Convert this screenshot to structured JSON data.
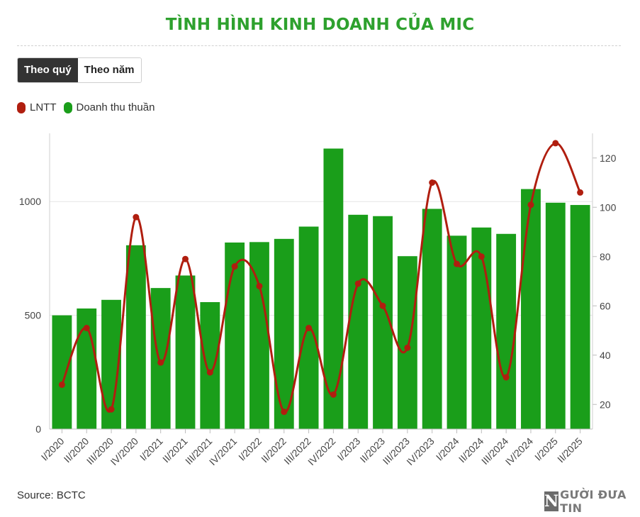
{
  "header": {
    "title": "TÌNH HÌNH KINH DOANH CỦA MIC"
  },
  "toggle": {
    "quarter_label": "Theo quý",
    "year_label": "Theo năm",
    "selected": "Theo quý"
  },
  "legend": {
    "line_label": "LNTT",
    "bar_label": "Doanh thu thuần"
  },
  "footer": {
    "source": "Source: BCTC",
    "brand_letter": "N",
    "brand_text": "GƯỜI ĐƯA TIN"
  },
  "colors": {
    "title": "#2ea12e",
    "bar": "#1a9e1a",
    "line": "#b01e0f"
  },
  "chart_data": {
    "type": "bar",
    "categories": [
      "I/2020",
      "II/2020",
      "III/2020",
      "IV/2020",
      "I/2021",
      "II/2021",
      "III/2021",
      "IV/2021",
      "I/2022",
      "II/2022",
      "III/2022",
      "IV/2022",
      "I/2023",
      "II/2023",
      "III/2023",
      "IV/2023",
      "I/2024",
      "II/2024",
      "III/2024",
      "IV/2024",
      "I/2025",
      "II/2025"
    ],
    "series": [
      {
        "name": "Doanh thu thuần",
        "type": "bar",
        "axis": "left",
        "values": [
          500,
          530,
          568,
          808,
          620,
          675,
          558,
          820,
          822,
          836,
          890,
          1233,
          942,
          936,
          760,
          968,
          850,
          886,
          858,
          1055,
          995,
          985
        ]
      },
      {
        "name": "LNTT",
        "type": "line",
        "axis": "right",
        "values": [
          28,
          51,
          18,
          96,
          37,
          79,
          33,
          76,
          68,
          17,
          51,
          24,
          69,
          60,
          43,
          110,
          77,
          80,
          31,
          101,
          126,
          106
        ]
      }
    ],
    "y_left": {
      "ticks": [
        0,
        500,
        1000
      ],
      "ylim": [
        0,
        1300
      ]
    },
    "y_right": {
      "ticks": [
        20,
        40,
        60,
        80,
        100,
        120
      ],
      "ylim": [
        10,
        130
      ]
    },
    "grid": "horizontal",
    "legend_position": "top-left"
  }
}
